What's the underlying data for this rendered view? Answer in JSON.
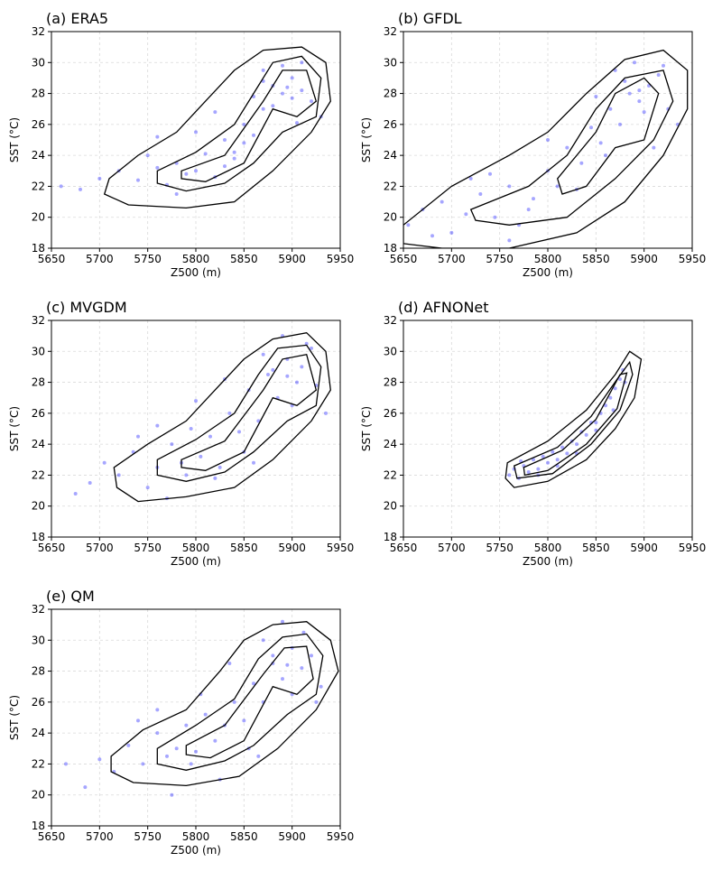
{
  "chart_data": [
    {
      "type": "scatter",
      "title": "(a) ERA5",
      "xlabel": "Z500 (m)",
      "ylabel": "SST (°C)",
      "xlim": [
        5650,
        5950
      ],
      "ylim": [
        18,
        32
      ],
      "xticks": [
        5650,
        5700,
        5750,
        5800,
        5850,
        5900,
        5950
      ],
      "yticks": [
        18,
        20,
        22,
        24,
        26,
        28,
        30,
        32
      ],
      "grid": true,
      "color": "#0000ff",
      "contour_color": "#000000",
      "x": [
        5660,
        5680,
        5700,
        5720,
        5740,
        5750,
        5760,
        5770,
        5780,
        5790,
        5800,
        5810,
        5820,
        5830,
        5840,
        5850,
        5860,
        5870,
        5880,
        5890,
        5900,
        5910,
        5920,
        5930,
        5780,
        5800,
        5820,
        5840,
        5860,
        5870,
        5880,
        5890,
        5900,
        5910,
        5850,
        5830,
        5870,
        5895,
        5905,
        5760
      ],
      "y": [
        22.0,
        21.8,
        22.5,
        23.0,
        22.4,
        24.0,
        23.2,
        22.1,
        23.5,
        22.8,
        23.0,
        24.1,
        22.6,
        25.0,
        24.2,
        26.0,
        25.3,
        27.0,
        28.5,
        28.0,
        29.0,
        28.2,
        27.5,
        26.5,
        21.5,
        25.5,
        26.8,
        23.8,
        27.8,
        29.5,
        27.2,
        29.8,
        27.7,
        30.0,
        24.8,
        23.3,
        28.8,
        28.4,
        26.1,
        25.2
      ],
      "contours": [
        {
          "x": [
            5710,
            5740,
            5780,
            5810,
            5840,
            5870,
            5910,
            5935,
            5940,
            5920,
            5880,
            5840,
            5790,
            5730,
            5705
          ],
          "y": [
            22.5,
            24,
            25.5,
            27.5,
            29.5,
            30.8,
            31,
            30,
            27.5,
            25.5,
            23,
            21,
            20.6,
            20.8,
            21.5
          ]
        },
        {
          "x": [
            5760,
            5800,
            5840,
            5865,
            5880,
            5910,
            5930,
            5925,
            5890,
            5860,
            5830,
            5790,
            5760
          ],
          "y": [
            23,
            24.2,
            26,
            28.5,
            30,
            30.4,
            29,
            26.5,
            25.5,
            23.5,
            22.2,
            21.7,
            22.2
          ]
        },
        {
          "x": [
            5785,
            5830,
            5870,
            5890,
            5915,
            5925,
            5905,
            5880,
            5850,
            5810,
            5785
          ],
          "y": [
            23,
            24,
            27.5,
            29.5,
            29.5,
            27.5,
            26.5,
            27,
            23.5,
            22.3,
            22.5
          ]
        }
      ]
    },
    {
      "type": "scatter",
      "title": "(b) GFDL",
      "xlabel": "Z500 (m)",
      "ylabel": "SST (°C)",
      "xlim": [
        5650,
        5950
      ],
      "ylim": [
        18,
        32
      ],
      "xticks": [
        5650,
        5700,
        5750,
        5800,
        5850,
        5900,
        5950
      ],
      "yticks": [
        18,
        20,
        22,
        24,
        26,
        28,
        30,
        32
      ],
      "grid": true,
      "color": "#0000ff",
      "contour_color": "#000000",
      "x": [
        5655,
        5670,
        5690,
        5700,
        5715,
        5730,
        5745,
        5760,
        5770,
        5785,
        5800,
        5810,
        5820,
        5835,
        5845,
        5855,
        5865,
        5875,
        5885,
        5895,
        5905,
        5915,
        5925,
        5935,
        5740,
        5780,
        5800,
        5830,
        5850,
        5870,
        5880,
        5890,
        5900,
        5910,
        5760,
        5720,
        5860,
        5895,
        5920,
        5680
      ],
      "y": [
        19.5,
        20.5,
        21.0,
        19.0,
        20.2,
        21.5,
        20.0,
        22.0,
        19.5,
        21.2,
        23.0,
        22.0,
        24.5,
        23.5,
        25.8,
        24.8,
        27.0,
        26.0,
        28.0,
        27.5,
        28.5,
        29.2,
        27.0,
        26.0,
        22.8,
        20.5,
        25.0,
        21.8,
        27.8,
        29.5,
        28.8,
        30.0,
        26.8,
        24.5,
        18.5,
        22.5,
        24.0,
        28.2,
        29.8,
        18.8
      ],
      "contours": [
        {
          "x": [
            5650,
            5700,
            5760,
            5800,
            5840,
            5880,
            5920,
            5945,
            5945,
            5920,
            5880,
            5830,
            5760,
            5690,
            5650
          ],
          "y": [
            19.5,
            22,
            24,
            25.5,
            28,
            30.2,
            30.8,
            29.5,
            27,
            24,
            21,
            19,
            18,
            18,
            18.3
          ]
        },
        {
          "x": [
            5720,
            5780,
            5820,
            5850,
            5880,
            5920,
            5930,
            5910,
            5870,
            5820,
            5760,
            5725
          ],
          "y": [
            20.5,
            22,
            24,
            27,
            29,
            29.5,
            27.5,
            25,
            22.5,
            20,
            19.5,
            19.8
          ]
        },
        {
          "x": [
            5810,
            5850,
            5870,
            5900,
            5915,
            5900,
            5870,
            5840,
            5815
          ],
          "y": [
            22.5,
            25.5,
            28,
            29,
            28,
            25,
            24.5,
            22,
            21.5
          ]
        }
      ]
    },
    {
      "type": "scatter",
      "title": "(c) MVGDM",
      "xlabel": "Z500 (m)",
      "ylabel": "SST (°C)",
      "xlim": [
        5650,
        5950
      ],
      "ylim": [
        18,
        32
      ],
      "xticks": [
        5650,
        5700,
        5750,
        5800,
        5850,
        5900,
        5950
      ],
      "yticks": [
        18,
        20,
        22,
        24,
        26,
        28,
        30,
        32
      ],
      "grid": true,
      "color": "#0000ff",
      "contour_color": "#000000",
      "x": [
        5675,
        5690,
        5705,
        5720,
        5735,
        5750,
        5760,
        5775,
        5785,
        5795,
        5805,
        5815,
        5825,
        5835,
        5845,
        5855,
        5865,
        5875,
        5885,
        5895,
        5905,
        5915,
        5925,
        5935,
        5740,
        5770,
        5800,
        5830,
        5850,
        5870,
        5880,
        5890,
        5900,
        5910,
        5820,
        5760,
        5860,
        5895,
        5920,
        5790
      ],
      "y": [
        20.8,
        21.5,
        22.8,
        22.0,
        23.5,
        21.2,
        22.5,
        24.0,
        22.8,
        25.0,
        23.2,
        24.5,
        22.5,
        26.0,
        24.8,
        27.5,
        25.5,
        28.5,
        27.0,
        29.5,
        28.0,
        30.5,
        27.8,
        26.0,
        24.5,
        20.5,
        26.8,
        28.2,
        23.5,
        29.8,
        28.8,
        31.0,
        26.5,
        29.0,
        21.8,
        25.2,
        22.8,
        28.4,
        30.2,
        22.0
      ],
      "contours": [
        {
          "x": [
            5715,
            5750,
            5790,
            5820,
            5850,
            5880,
            5915,
            5935,
            5940,
            5920,
            5880,
            5840,
            5790,
            5740,
            5718
          ],
          "y": [
            22.5,
            24,
            25.5,
            27.5,
            29.5,
            30.8,
            31.2,
            30,
            27.5,
            25.5,
            23,
            21.2,
            20.6,
            20.3,
            21.2
          ]
        },
        {
          "x": [
            5760,
            5800,
            5840,
            5865,
            5885,
            5915,
            5930,
            5925,
            5895,
            5860,
            5830,
            5790,
            5760
          ],
          "y": [
            23,
            24.3,
            26,
            28.5,
            30.2,
            30.4,
            29,
            26.5,
            25.5,
            23.5,
            22.2,
            21.6,
            22
          ]
        },
        {
          "x": [
            5785,
            5830,
            5870,
            5890,
            5915,
            5925,
            5905,
            5880,
            5850,
            5810,
            5785
          ],
          "y": [
            23,
            24.2,
            27.5,
            29.5,
            29.8,
            27.5,
            26.5,
            27,
            23.5,
            22.3,
            22.5
          ]
        }
      ]
    },
    {
      "type": "scatter",
      "title": "(d) AFNONet",
      "xlabel": "Z500 (m)",
      "ylabel": "SST (°C)",
      "xlim": [
        5650,
        5950
      ],
      "ylim": [
        18,
        32
      ],
      "xticks": [
        5650,
        5700,
        5750,
        5800,
        5850,
        5900,
        5950
      ],
      "yticks": [
        18,
        20,
        22,
        24,
        26,
        28,
        30,
        32
      ],
      "grid": true,
      "color": "#0000ff",
      "contour_color": "#000000",
      "x": [
        5760,
        5765,
        5770,
        5775,
        5780,
        5785,
        5790,
        5795,
        5800,
        5805,
        5810,
        5815,
        5820,
        5825,
        5830,
        5835,
        5840,
        5845,
        5850,
        5855,
        5860,
        5865,
        5870,
        5875,
        5878,
        5880,
        5772,
        5790,
        5810,
        5830,
        5850,
        5868
      ],
      "y": [
        22.0,
        22.4,
        21.8,
        22.6,
        22.2,
        23.0,
        22.4,
        23.2,
        22.8,
        23.5,
        23.0,
        23.8,
        23.4,
        24.2,
        24.0,
        24.8,
        24.6,
        25.4,
        25.4,
        26.0,
        26.5,
        27.0,
        27.6,
        28.2,
        28.8,
        28.0,
        22.9,
        22.0,
        22.6,
        23.4,
        24.9,
        26.2
      ],
      "contours": [
        {
          "x": [
            5758,
            5800,
            5840,
            5870,
            5885,
            5897,
            5890,
            5870,
            5840,
            5800,
            5765,
            5756
          ],
          "y": [
            22.8,
            24.2,
            26.2,
            28.5,
            30,
            29.5,
            27,
            25,
            23,
            21.6,
            21.2,
            21.8
          ]
        },
        {
          "x": [
            5765,
            5810,
            5845,
            5872,
            5885,
            5888,
            5875,
            5845,
            5805,
            5768
          ],
          "y": [
            22.6,
            23.8,
            25.8,
            28.2,
            29.3,
            28.5,
            26.2,
            24,
            22.1,
            21.8
          ]
        },
        {
          "x": [
            5775,
            5815,
            5850,
            5875,
            5882,
            5872,
            5840,
            5800,
            5776
          ],
          "y": [
            22.5,
            23.6,
            25.6,
            28.5,
            28.6,
            26.3,
            24,
            22.3,
            22.0
          ]
        }
      ]
    },
    {
      "type": "scatter",
      "title": "(e) QM",
      "xlabel": "Z500 (m)",
      "ylabel": "SST (°C)",
      "xlim": [
        5650,
        5950
      ],
      "ylim": [
        18,
        32
      ],
      "xticks": [
        5650,
        5700,
        5750,
        5800,
        5850,
        5900,
        5950
      ],
      "yticks": [
        18,
        20,
        22,
        24,
        26,
        28,
        30,
        32
      ],
      "grid": true,
      "color": "#0000ff",
      "contour_color": "#000000",
      "x": [
        5665,
        5685,
        5700,
        5715,
        5730,
        5745,
        5760,
        5770,
        5780,
        5790,
        5800,
        5810,
        5820,
        5830,
        5840,
        5850,
        5860,
        5870,
        5880,
        5890,
        5900,
        5910,
        5920,
        5930,
        5740,
        5775,
        5805,
        5835,
        5855,
        5870,
        5880,
        5890,
        5900,
        5912,
        5825,
        5760,
        5865,
        5895,
        5925,
        5795
      ],
      "y": [
        22.0,
        20.5,
        22.3,
        21.5,
        23.2,
        22.0,
        24.0,
        22.5,
        23.0,
        24.5,
        22.8,
        25.2,
        23.5,
        24.5,
        26.0,
        24.8,
        27.2,
        26.0,
        28.5,
        27.5,
        29.5,
        28.2,
        29.0,
        27.0,
        24.8,
        20.0,
        26.5,
        28.5,
        23.0,
        30.0,
        29.0,
        31.2,
        26.5,
        30.5,
        21.0,
        25.5,
        22.5,
        28.4,
        26.0,
        22.0
      ],
      "contours": [
        {
          "x": [
            5712,
            5745,
            5790,
            5825,
            5850,
            5880,
            5915,
            5940,
            5948,
            5925,
            5885,
            5845,
            5790,
            5735,
            5712
          ],
          "y": [
            22.5,
            24.2,
            25.5,
            28,
            30,
            31,
            31.2,
            30,
            28,
            25.5,
            23,
            21.2,
            20.6,
            20.8,
            21.5
          ]
        },
        {
          "x": [
            5760,
            5800,
            5840,
            5865,
            5890,
            5915,
            5932,
            5925,
            5895,
            5860,
            5830,
            5790,
            5760
          ],
          "y": [
            23,
            24.5,
            26.2,
            28.8,
            30.2,
            30.4,
            29,
            26.5,
            25.2,
            23.2,
            22.2,
            21.6,
            22
          ]
        },
        {
          "x": [
            5790,
            5830,
            5870,
            5892,
            5915,
            5922,
            5905,
            5880,
            5850,
            5815,
            5790
          ],
          "y": [
            23.2,
            24.5,
            27.8,
            29.5,
            29.6,
            27.5,
            26.5,
            27,
            23.5,
            22.4,
            22.6
          ]
        }
      ]
    }
  ]
}
